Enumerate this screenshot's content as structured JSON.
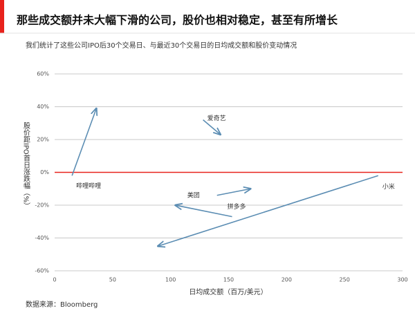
{
  "title": "那些成交额并未大幅下滑的公司，股价也相对稳定，甚至有所增长",
  "subtitle": "我们统计了这些公司IPO后30个交易日、与最近30个交易日的日均成交额和股价变动情况",
  "source": "数据来源：Bloomberg",
  "chart_data": {
    "type": "arrow",
    "x_label": "日均成交额（百万/美元）",
    "y_label": "股价距IPO首日涨跌幅（%）",
    "xlim": [
      0,
      300
    ],
    "xticks": [
      0,
      50,
      100,
      150,
      200,
      250,
      300
    ],
    "ylim": [
      -60,
      60
    ],
    "yticks": [
      {
        "value": -60,
        "label": "-60%"
      },
      {
        "value": -40,
        "label": "-40%"
      },
      {
        "value": -20,
        "label": "-20%"
      },
      {
        "value": 0,
        "label": "0%"
      },
      {
        "value": 20,
        "label": "20%"
      },
      {
        "value": 40,
        "label": "40%"
      },
      {
        "value": 60,
        "label": "60%"
      }
    ],
    "grid": true,
    "zero_line_color": "#e8221c",
    "color": "#5b8db3",
    "series": [
      {
        "name": "哔哩哔哩",
        "x": [
          15,
          36
        ],
        "values": [
          -2,
          39
        ]
      },
      {
        "name": "爱奇艺",
        "x": [
          128,
          143
        ],
        "values": [
          32,
          23
        ]
      },
      {
        "name": "美团",
        "x": [
          140,
          169
        ],
        "values": [
          -14,
          -10
        ]
      },
      {
        "name": "拼多多",
        "x": [
          153,
          104
        ],
        "values": [
          -27,
          -20
        ]
      },
      {
        "name": "小米",
        "x": [
          279,
          89
        ],
        "values": [
          -2,
          -45
        ]
      }
    ]
  }
}
